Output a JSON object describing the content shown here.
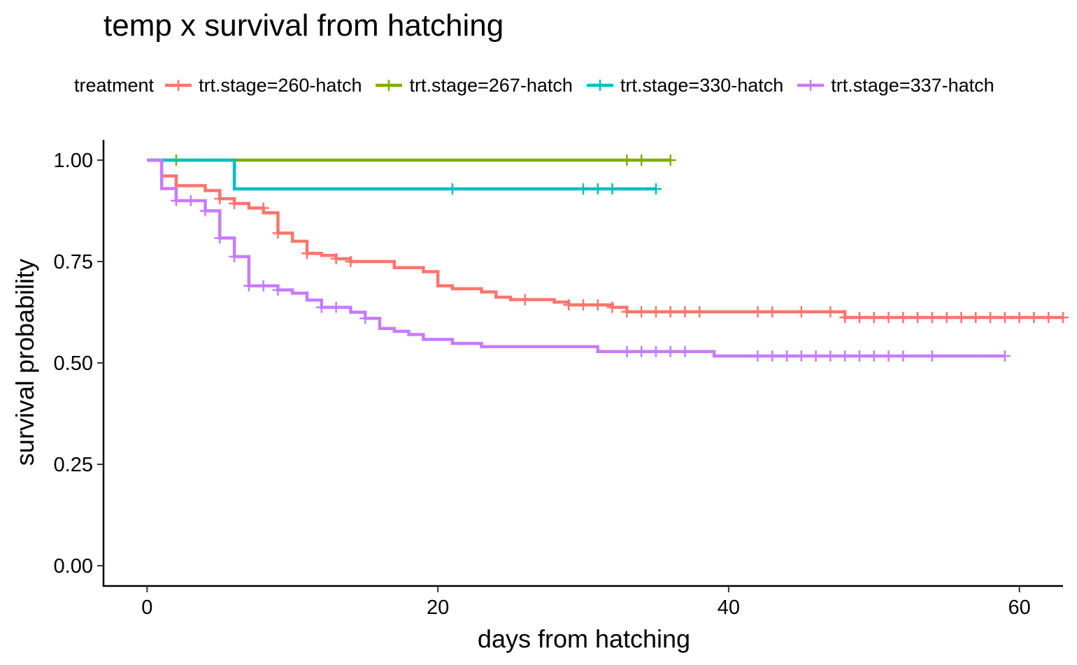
{
  "chart_data": {
    "type": "line",
    "subtype": "kaplan-meier survival step curve with censor marks",
    "title": "temp x survival from hatching",
    "xlabel": "days from hatching",
    "ylabel": "survival probability",
    "xlim": [
      -3,
      63
    ],
    "ylim": [
      -0.05,
      1.05
    ],
    "xticks": [
      0,
      20,
      40,
      60
    ],
    "xtick_labels": [
      "0",
      "20",
      "40",
      "60"
    ],
    "yticks": [
      0,
      0.25,
      0.5,
      0.75,
      1
    ],
    "ytick_labels": [
      "0.00",
      "0.25",
      "0.50",
      "0.75",
      "1.00"
    ],
    "grid": false,
    "legend": {
      "title": "treatment",
      "position": "top"
    },
    "series": [
      {
        "name": "trt.stage=260-hatch",
        "color": "#F8766D",
        "steps": [
          [
            0,
            1
          ],
          [
            1,
            0.961
          ],
          [
            2,
            0.937
          ],
          [
            4,
            0.925
          ],
          [
            5,
            0.905
          ],
          [
            6,
            0.893
          ],
          [
            7,
            0.882
          ],
          [
            8,
            0.87
          ],
          [
            9,
            0.82
          ],
          [
            10,
            0.8
          ],
          [
            11,
            0.77
          ],
          [
            12,
            0.765
          ],
          [
            13,
            0.757
          ],
          [
            14,
            0.75
          ],
          [
            17,
            0.735
          ],
          [
            19,
            0.725
          ],
          [
            20,
            0.69
          ],
          [
            21,
            0.683
          ],
          [
            23,
            0.675
          ],
          [
            24,
            0.662
          ],
          [
            25,
            0.656
          ],
          [
            28,
            0.65
          ],
          [
            29,
            0.643
          ],
          [
            32,
            0.637
          ],
          [
            33,
            0.626
          ],
          [
            48,
            0.612
          ]
        ],
        "end": 63,
        "censored": [
          [
            5,
            0.905
          ],
          [
            6,
            0.893
          ],
          [
            8,
            0.882
          ],
          [
            9,
            0.82
          ],
          [
            11,
            0.77
          ],
          [
            13,
            0.757
          ],
          [
            14,
            0.75
          ],
          [
            26,
            0.656
          ],
          [
            29,
            0.643
          ],
          [
            30,
            0.643
          ],
          [
            31,
            0.643
          ],
          [
            32,
            0.637
          ],
          [
            33,
            0.626
          ],
          [
            34,
            0.626
          ],
          [
            35,
            0.626
          ],
          [
            36,
            0.626
          ],
          [
            37,
            0.626
          ],
          [
            38,
            0.626
          ],
          [
            42,
            0.626
          ],
          [
            43,
            0.626
          ],
          [
            45,
            0.626
          ],
          [
            47,
            0.626
          ],
          [
            48,
            0.612
          ],
          [
            49,
            0.612
          ],
          [
            50,
            0.612
          ],
          [
            51,
            0.612
          ],
          [
            52,
            0.612
          ],
          [
            53,
            0.612
          ],
          [
            54,
            0.612
          ],
          [
            55,
            0.612
          ],
          [
            56,
            0.612
          ],
          [
            57,
            0.612
          ],
          [
            58,
            0.612
          ],
          [
            59,
            0.612
          ],
          [
            60,
            0.612
          ],
          [
            61,
            0.612
          ],
          [
            62,
            0.612
          ],
          [
            63,
            0.612
          ]
        ]
      },
      {
        "name": "trt.stage=267-hatch",
        "color": "#7CAE00",
        "steps": [
          [
            0,
            1
          ]
        ],
        "end": 36,
        "censored": [
          [
            2,
            1
          ],
          [
            33,
            1
          ],
          [
            34,
            1
          ],
          [
            36,
            1
          ]
        ]
      },
      {
        "name": "trt.stage=330-hatch",
        "color": "#00BFC4",
        "steps": [
          [
            0,
            1
          ],
          [
            6,
            0.929
          ]
        ],
        "end": 35,
        "censored": [
          [
            21,
            0.929
          ],
          [
            30,
            0.929
          ],
          [
            31,
            0.929
          ],
          [
            32,
            0.929
          ],
          [
            35,
            0.929
          ]
        ]
      },
      {
        "name": "trt.stage=337-hatch",
        "color": "#C77CFF",
        "steps": [
          [
            0,
            1
          ],
          [
            1,
            0.93
          ],
          [
            2,
            0.9
          ],
          [
            4,
            0.875
          ],
          [
            5,
            0.808
          ],
          [
            6,
            0.762
          ],
          [
            7,
            0.69
          ],
          [
            9,
            0.68
          ],
          [
            10,
            0.672
          ],
          [
            11,
            0.655
          ],
          [
            12,
            0.637
          ],
          [
            14,
            0.625
          ],
          [
            15,
            0.61
          ],
          [
            16,
            0.585
          ],
          [
            17,
            0.578
          ],
          [
            18,
            0.57
          ],
          [
            19,
            0.558
          ],
          [
            21,
            0.548
          ],
          [
            23,
            0.54
          ],
          [
            31,
            0.528
          ],
          [
            39,
            0.517
          ]
        ],
        "end": 59,
        "censored": [
          [
            2,
            0.9
          ],
          [
            3,
            0.9
          ],
          [
            4,
            0.875
          ],
          [
            5,
            0.808
          ],
          [
            6,
            0.762
          ],
          [
            7,
            0.69
          ],
          [
            8,
            0.69
          ],
          [
            9,
            0.68
          ],
          [
            12,
            0.637
          ],
          [
            13,
            0.637
          ],
          [
            15,
            0.61
          ],
          [
            33,
            0.528
          ],
          [
            34,
            0.528
          ],
          [
            35,
            0.528
          ],
          [
            36,
            0.528
          ],
          [
            37,
            0.528
          ],
          [
            42,
            0.517
          ],
          [
            43,
            0.517
          ],
          [
            44,
            0.517
          ],
          [
            45,
            0.517
          ],
          [
            46,
            0.517
          ],
          [
            47,
            0.517
          ],
          [
            48,
            0.517
          ],
          [
            49,
            0.517
          ],
          [
            50,
            0.517
          ],
          [
            51,
            0.517
          ],
          [
            52,
            0.517
          ],
          [
            54,
            0.517
          ],
          [
            59,
            0.517
          ]
        ]
      }
    ]
  }
}
